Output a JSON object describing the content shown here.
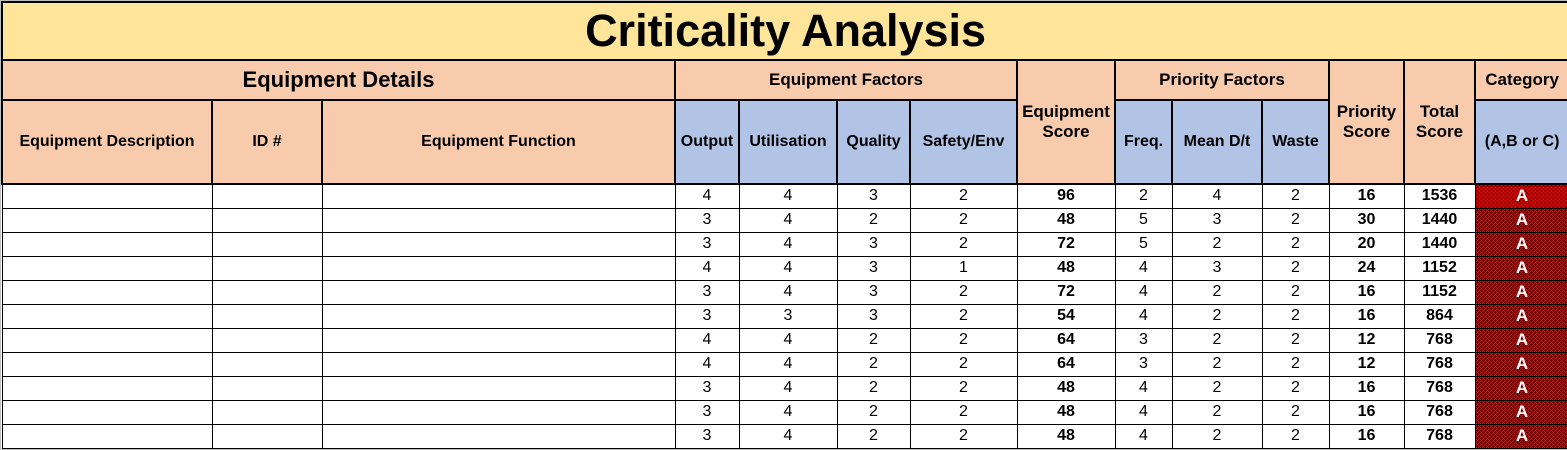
{
  "title": "Criticality Analysis",
  "colors": {
    "title_bg": "#FFE599",
    "header_bg": "#F8CBAD",
    "subheader_bg": "#B2C4E6",
    "category_bg": "#FF0000",
    "category_text": "#FFFFFF",
    "grid_border": "#000000"
  },
  "header": {
    "groups": {
      "equipment_details": "Equipment Details",
      "equipment_factors": "Equipment Factors",
      "priority_factors": "Priority Factors",
      "category": "Category"
    },
    "columns": {
      "description": "Equipment Description",
      "id": "ID #",
      "function": "Equipment Function",
      "output": "Output",
      "utilisation": "Utilisation",
      "quality": "Quality",
      "safety_env": "Safety/Env",
      "equipment_score": "Equipment Score",
      "freq": "Freq.",
      "mean_dt": "Mean D/t",
      "waste": "Waste",
      "priority_score": "Priority Score",
      "total_score": "Total Score",
      "category_sub": "(A,B or C)"
    }
  },
  "rows": [
    {
      "description": "",
      "id": "",
      "function": "",
      "output": 4,
      "utilisation": 4,
      "quality": 3,
      "safety_env": 2,
      "equipment_score": 96,
      "freq": 2,
      "mean_dt": 4,
      "waste": 2,
      "priority_score": 16,
      "total_score": 1536,
      "category": "A"
    },
    {
      "description": "",
      "id": "",
      "function": "",
      "output": 3,
      "utilisation": 4,
      "quality": 2,
      "safety_env": 2,
      "equipment_score": 48,
      "freq": 5,
      "mean_dt": 3,
      "waste": 2,
      "priority_score": 30,
      "total_score": 1440,
      "category": "A"
    },
    {
      "description": "",
      "id": "",
      "function": "",
      "output": 3,
      "utilisation": 4,
      "quality": 3,
      "safety_env": 2,
      "equipment_score": 72,
      "freq": 5,
      "mean_dt": 2,
      "waste": 2,
      "priority_score": 20,
      "total_score": 1440,
      "category": "A"
    },
    {
      "description": "",
      "id": "",
      "function": "",
      "output": 4,
      "utilisation": 4,
      "quality": 3,
      "safety_env": 1,
      "equipment_score": 48,
      "freq": 4,
      "mean_dt": 3,
      "waste": 2,
      "priority_score": 24,
      "total_score": 1152,
      "category": "A"
    },
    {
      "description": "",
      "id": "",
      "function": "",
      "output": 3,
      "utilisation": 4,
      "quality": 3,
      "safety_env": 2,
      "equipment_score": 72,
      "freq": 4,
      "mean_dt": 2,
      "waste": 2,
      "priority_score": 16,
      "total_score": 1152,
      "category": "A"
    },
    {
      "description": "",
      "id": "",
      "function": "",
      "output": 3,
      "utilisation": 3,
      "quality": 3,
      "safety_env": 2,
      "equipment_score": 54,
      "freq": 4,
      "mean_dt": 2,
      "waste": 2,
      "priority_score": 16,
      "total_score": 864,
      "category": "A"
    },
    {
      "description": "",
      "id": "",
      "function": "",
      "output": 4,
      "utilisation": 4,
      "quality": 2,
      "safety_env": 2,
      "equipment_score": 64,
      "freq": 3,
      "mean_dt": 2,
      "waste": 2,
      "priority_score": 12,
      "total_score": 768,
      "category": "A"
    },
    {
      "description": "",
      "id": "",
      "function": "",
      "output": 4,
      "utilisation": 4,
      "quality": 2,
      "safety_env": 2,
      "equipment_score": 64,
      "freq": 3,
      "mean_dt": 2,
      "waste": 2,
      "priority_score": 12,
      "total_score": 768,
      "category": "A"
    },
    {
      "description": "",
      "id": "",
      "function": "",
      "output": 3,
      "utilisation": 4,
      "quality": 2,
      "safety_env": 2,
      "equipment_score": 48,
      "freq": 4,
      "mean_dt": 2,
      "waste": 2,
      "priority_score": 16,
      "total_score": 768,
      "category": "A"
    },
    {
      "description": "",
      "id": "",
      "function": "",
      "output": 3,
      "utilisation": 4,
      "quality": 2,
      "safety_env": 2,
      "equipment_score": 48,
      "freq": 4,
      "mean_dt": 2,
      "waste": 2,
      "priority_score": 16,
      "total_score": 768,
      "category": "A"
    },
    {
      "description": "",
      "id": "",
      "function": "",
      "output": 3,
      "utilisation": 4,
      "quality": 2,
      "safety_env": 2,
      "equipment_score": 48,
      "freq": 4,
      "mean_dt": 2,
      "waste": 2,
      "priority_score": 16,
      "total_score": 768,
      "category": "A"
    }
  ]
}
